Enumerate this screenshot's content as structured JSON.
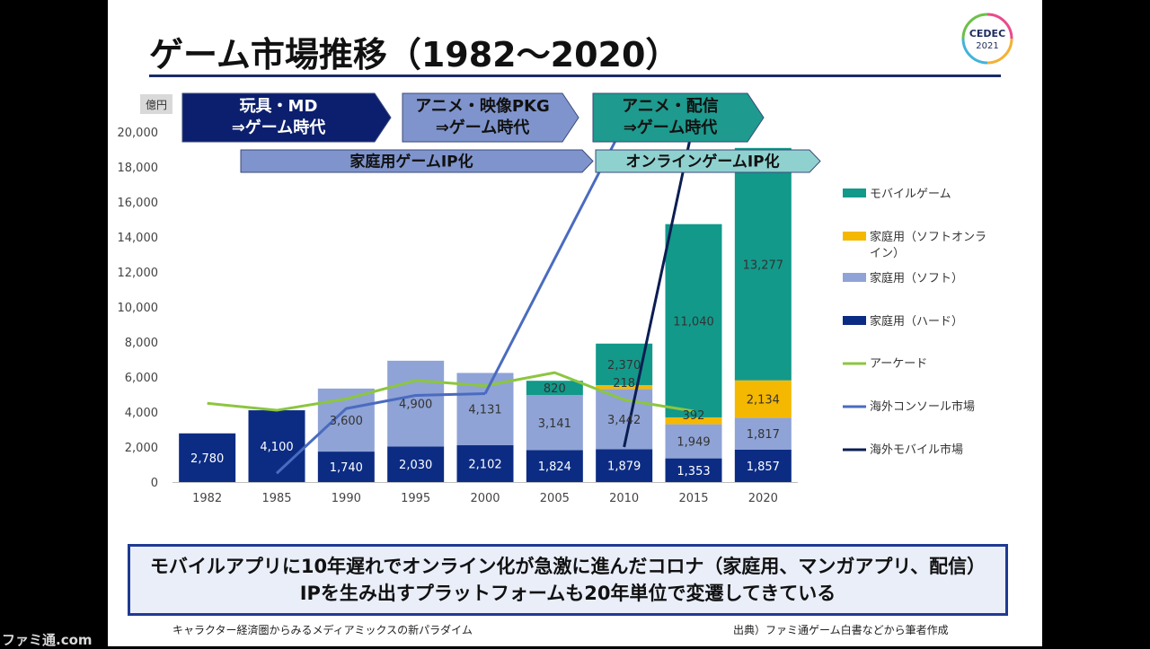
{
  "slide": {
    "title": "ゲーム市場推移（1982～2020）",
    "logo_line1": "CEDEC",
    "logo_line2": "2021",
    "callout_line1": "モバイルアプリに10年遅れでオンライン化が急激に進んだコロナ（家庭用、マンガアプリ、配信）",
    "callout_line2": "IPを生み出すプラットフォームも20年単位で変遷してきている",
    "footer_left": "キャラクター経済圏からみるメディアミックスの新パラダイム",
    "footer_right": "出典）ファミ通ゲーム白書などから筆者作成",
    "watermark": "ファミ通.com"
  },
  "chart_data": {
    "type": "bar",
    "stacked": true,
    "unit_label": "億円",
    "ylim": [
      0,
      20000
    ],
    "yticks": [
      "0",
      "2,000",
      "4,000",
      "6,000",
      "8,000",
      "10,000",
      "12,000",
      "14,000",
      "16,000",
      "18,000",
      "20,000"
    ],
    "categories": [
      "1982",
      "1985",
      "1990",
      "1995",
      "2000",
      "2005",
      "2010",
      "2015",
      "2020"
    ],
    "series": [
      {
        "name": "家庭用（ハード）",
        "color": "#0c2c84",
        "type": "bar",
        "values": [
          2780,
          4100,
          1740,
          2030,
          2102,
          1824,
          1879,
          1353,
          1857
        ],
        "labels": [
          "2,780",
          "4,100",
          "1,740",
          "2,030",
          "2,102",
          "1,824",
          "1,879",
          "1,353",
          "1,857"
        ]
      },
      {
        "name": "家庭用（ソフト）",
        "color": "#8fa3d6",
        "type": "bar",
        "values": [
          0,
          0,
          3600,
          4900,
          4131,
          3141,
          3442,
          1949,
          1817
        ],
        "labels": [
          "",
          "",
          "3,600",
          "4,900",
          "4,131",
          "3,141",
          "3,442",
          "1,949",
          "1,817"
        ]
      },
      {
        "name": "家庭用（ソフトオンライン）",
        "color": "#f5b800",
        "type": "bar",
        "values": [
          0,
          0,
          0,
          0,
          0,
          0,
          218,
          392,
          2134
        ],
        "labels": [
          "",
          "",
          "",
          "",
          "",
          "",
          "218",
          "392",
          "2,134"
        ]
      },
      {
        "name": "モバイルゲーム",
        "color": "#12998a",
        "type": "bar",
        "values": [
          0,
          0,
          0,
          0,
          0,
          820,
          2370,
          11040,
          13277
        ],
        "labels": [
          "",
          "",
          "",
          "",
          "",
          "820",
          "2,370",
          "11,040",
          "13,277"
        ]
      },
      {
        "name": "アーケード",
        "color": "#8cc63f",
        "type": "line",
        "values": [
          4500,
          4100,
          4750,
          5800,
          5500,
          6250,
          4700,
          4050,
          null
        ]
      },
      {
        "name": "海外コンソール市場",
        "color": "#4a6bbf",
        "type": "line",
        "values": [
          null,
          500,
          4200,
          4950,
          5050,
          null,
          null,
          null,
          null
        ]
      },
      {
        "name": "海外モバイル市場",
        "color": "#0b1d52",
        "type": "line",
        "values": [
          null,
          null,
          null,
          null,
          null,
          null,
          2000,
          null,
          null
        ]
      }
    ],
    "legend_position": "right",
    "era_banners": [
      {
        "text": "玩具・MD\n⇒ゲーム時代",
        "color": "#0c1f6e",
        "text_color": "#ffffff"
      },
      {
        "text": "アニメ・映像PKG\n⇒ゲーム時代",
        "color": "#7f94cc",
        "text_color": "#111111"
      },
      {
        "text": "アニメ・配信\n⇒ゲーム時代",
        "color": "#1e9a8e",
        "text_color": "#111111"
      },
      {
        "text": "家庭用ゲームIP化",
        "color": "#7f94cc",
        "text_color": "#111111"
      },
      {
        "text": "オンラインゲームIP化",
        "color": "#8fd1cf",
        "text_color": "#111111"
      }
    ]
  }
}
